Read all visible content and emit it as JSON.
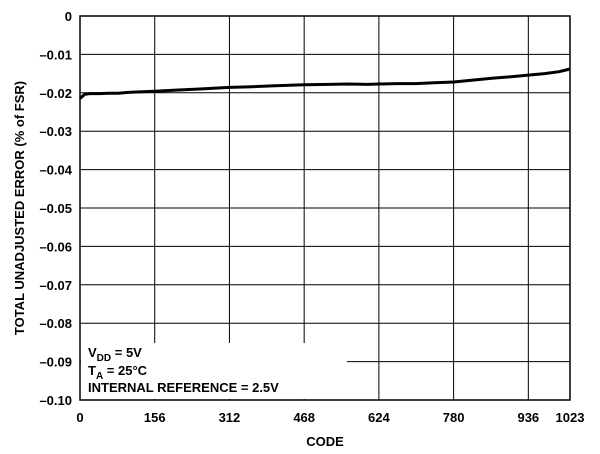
{
  "chart_data": {
    "type": "line",
    "title": "",
    "xlabel": "CODE",
    "ylabel": "TOTAL UNADJUSTED ERROR (% of FSR)",
    "xlim": [
      0,
      1023
    ],
    "ylim": [
      -0.1,
      0
    ],
    "xticks": [
      0,
      156,
      312,
      468,
      624,
      780,
      936,
      1023
    ],
    "xtick_labels": [
      "0",
      "156",
      "312",
      "468",
      "624",
      "780",
      "936",
      "1023"
    ],
    "yticks": [
      0,
      -0.01,
      -0.02,
      -0.03,
      -0.04,
      -0.05,
      -0.06,
      -0.07,
      -0.08,
      -0.09,
      -0.1
    ],
    "ytick_labels": [
      "0",
      "–0.01",
      "–0.02",
      "–0.03",
      "–0.04",
      "–0.05",
      "–0.06",
      "–0.07",
      "–0.08",
      "–0.09",
      "–0.10"
    ],
    "grid": true,
    "series": [
      {
        "x": [
          0,
          5,
          10,
          20,
          40,
          60,
          80,
          100,
          156,
          200,
          250,
          312,
          360,
          400,
          468,
          520,
          560,
          600,
          624,
          660,
          700,
          740,
          780,
          820,
          860,
          900,
          936,
          970,
          1000,
          1023
        ],
        "y": [
          -0.0215,
          -0.0209,
          -0.0204,
          -0.0202,
          -0.0202,
          -0.0201,
          -0.0201,
          -0.0199,
          -0.0196,
          -0.0193,
          -0.019,
          -0.0186,
          -0.0184,
          -0.0182,
          -0.0179,
          -0.0178,
          -0.0177,
          -0.0178,
          -0.0177,
          -0.0176,
          -0.0176,
          -0.0174,
          -0.0172,
          -0.0167,
          -0.0162,
          -0.0158,
          -0.0154,
          -0.015,
          -0.0145,
          -0.0138
        ]
      }
    ],
    "annotation": {
      "lines": [
        {
          "main": "V",
          "sub": "DD",
          "rest": " = 5V"
        },
        {
          "main": "T",
          "sub": "A",
          "rest": " = 25°C"
        },
        {
          "main": "INTERNAL REFERENCE = 2.5V",
          "sub": "",
          "rest": ""
        }
      ]
    }
  }
}
